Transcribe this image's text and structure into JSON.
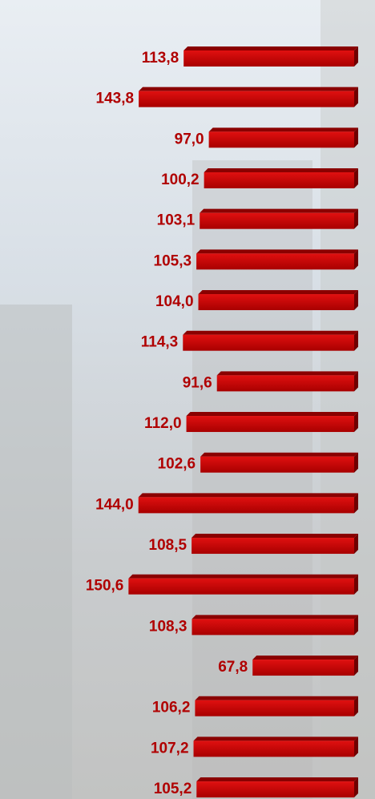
{
  "chart_data": {
    "type": "bar",
    "orientation": "horizontal",
    "color": "#c00000",
    "values": [
      113.8,
      143.8,
      97.0,
      100.2,
      103.1,
      105.3,
      104.0,
      114.3,
      91.6,
      112.0,
      102.6,
      144.0,
      108.5,
      150.6,
      108.3,
      67.8,
      106.2,
      107.2,
      105.2
    ],
    "value_labels": [
      "113,8",
      "143,8",
      "97,0",
      "100,2",
      "103,1",
      "105,3",
      "104,0",
      "114,3",
      "91,6",
      "112,0",
      "102,6",
      "144,0",
      "108,5",
      "150,6",
      "108,3",
      "67,8",
      "106,2",
      "107,2",
      "105,2"
    ]
  }
}
